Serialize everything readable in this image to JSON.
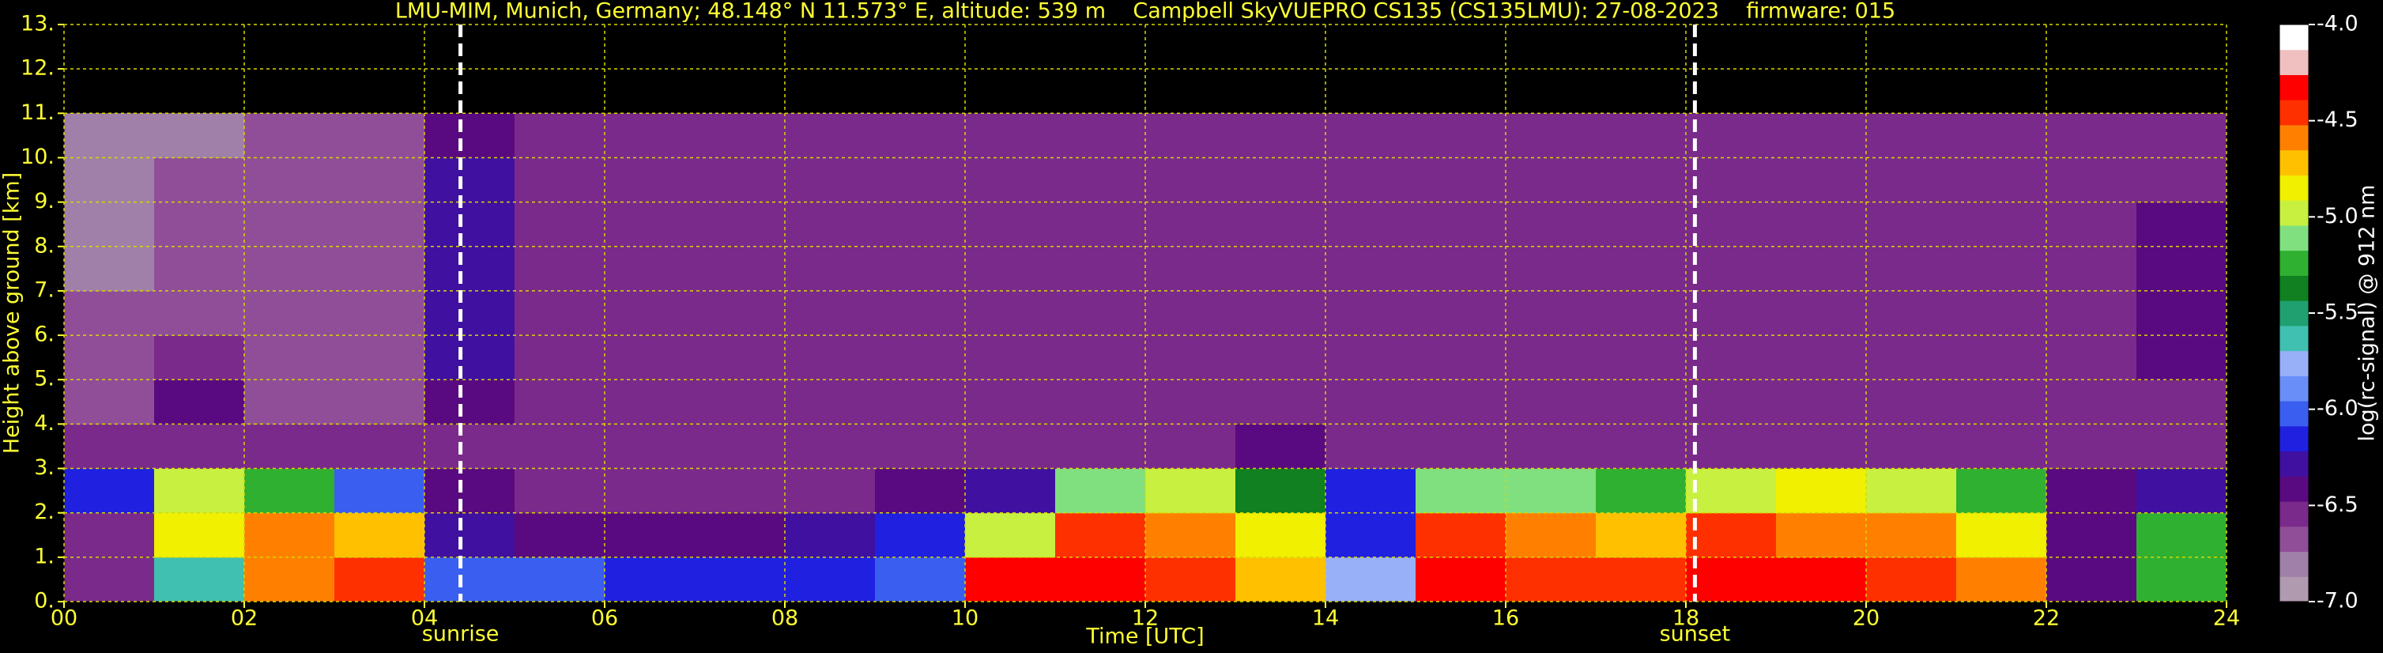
{
  "chart_data": {
    "type": "heatmap",
    "title": "LMU-MIM, Munich, Germany; 48.148° N 11.573° E, altitude: 539 m    Campbell SkyVUEPRO CS135 (CS135LMU): 27-08-2023    firmware: 015",
    "x_label": "Time [UTC]",
    "y_label": "Height above ground [km]",
    "colorbar_label": "log(rc-signal) @ 912 nm",
    "xlim": [
      0,
      24
    ],
    "ylim": [
      0,
      13
    ],
    "xticks": [
      {
        "value": 0,
        "label": "00"
      },
      {
        "value": 2,
        "label": "02"
      },
      {
        "value": 4,
        "label": "04"
      },
      {
        "value": 6,
        "label": "06"
      },
      {
        "value": 8,
        "label": "08"
      },
      {
        "value": 10,
        "label": "10"
      },
      {
        "value": 12,
        "label": "12"
      },
      {
        "value": 14,
        "label": "14"
      },
      {
        "value": 16,
        "label": "16"
      },
      {
        "value": 18,
        "label": "18"
      },
      {
        "value": 20,
        "label": "20"
      },
      {
        "value": 22,
        "label": "22"
      },
      {
        "value": 24,
        "label": "24"
      }
    ],
    "yticks": [
      {
        "value": 0,
        "label": "0."
      },
      {
        "value": 1,
        "label": "1."
      },
      {
        "value": 2,
        "label": "2."
      },
      {
        "value": 3,
        "label": "3."
      },
      {
        "value": 4,
        "label": "4."
      },
      {
        "value": 5,
        "label": "5."
      },
      {
        "value": 6,
        "label": "6."
      },
      {
        "value": 7,
        "label": "7."
      },
      {
        "value": 8,
        "label": "8."
      },
      {
        "value": 9,
        "label": "9."
      },
      {
        "value": 10,
        "label": "10."
      },
      {
        "value": 11,
        "label": "11."
      },
      {
        "value": 12,
        "label": "12."
      },
      {
        "value": 13,
        "label": "13."
      }
    ],
    "zlim": [
      -7.0,
      -4.0
    ],
    "zticks": [
      {
        "value": -4,
        "label": "-4.0"
      },
      {
        "value": -4.5,
        "label": "-4.5"
      },
      {
        "value": -5,
        "label": "-5.0"
      },
      {
        "value": -5.5,
        "label": "-5.5"
      },
      {
        "value": -6,
        "label": "-6.0"
      },
      {
        "value": -6.5,
        "label": "-6.5"
      },
      {
        "value": -7,
        "label": "-7.0"
      }
    ],
    "colorscale": [
      "#b09ab0",
      "#a080a8",
      "#904e98",
      "#7a2a8a",
      "#5a0a80",
      "#4010a0",
      "#2020e0",
      "#3a5ef0",
      "#6a8ef8",
      "#98b0f8",
      "#40c0b0",
      "#20a070",
      "#108020",
      "#30b030",
      "#80e080",
      "#c8f040",
      "#f0f000",
      "#ffc000",
      "#ff8000",
      "#ff3000",
      "#ff0000",
      "#f0c0c0",
      "#ffffff"
    ],
    "grid": true,
    "grid_color": "#d8d800",
    "text_color": "#ffff33",
    "x_bins": [
      0,
      1,
      2,
      3,
      4,
      5,
      6,
      7,
      8,
      9,
      10,
      11,
      12,
      13,
      14,
      15,
      16,
      17,
      18,
      19,
      20,
      21,
      22,
      23,
      24
    ],
    "y_bins": [
      0,
      1,
      2,
      3,
      4,
      5,
      6,
      7,
      8,
      9,
      10,
      11,
      12,
      13
    ],
    "z": [
      [
        -6.6,
        -5.6,
        -4.6,
        -4.5,
        -6.0,
        -6.0,
        -6.2,
        -6.2,
        -6.2,
        -6.0,
        -4.3,
        -4.3,
        -4.5,
        -4.7,
        -5.8,
        -4.3,
        -4.4,
        -4.5,
        -4.3,
        -4.3,
        -4.4,
        -4.6,
        -6.4,
        -5.2
      ],
      [
        -6.5,
        -4.9,
        -4.6,
        -4.7,
        -6.3,
        -6.4,
        -6.4,
        -6.4,
        -6.3,
        -6.2,
        -5.0,
        -4.5,
        -4.6,
        -4.9,
        -6.2,
        -4.5,
        -4.6,
        -4.7,
        -4.5,
        -4.6,
        -4.6,
        -4.8,
        -6.4,
        -5.3
      ],
      [
        -6.2,
        -5.0,
        -5.2,
        -6.0,
        -6.4,
        -6.5,
        -6.5,
        -6.5,
        -6.5,
        -6.4,
        -6.3,
        -5.1,
        -5.0,
        -5.4,
        -6.2,
        -5.1,
        -5.1,
        -5.2,
        -5.0,
        -4.9,
        -5.0,
        -5.2,
        -6.4,
        -6.3
      ],
      [
        -6.6,
        -6.5,
        -6.6,
        -6.6,
        -6.5,
        -6.5,
        -6.6,
        -6.6,
        -6.6,
        -6.6,
        -6.5,
        -6.5,
        -6.5,
        -6.4,
        -6.5,
        -6.6,
        -6.6,
        -6.6,
        -6.6,
        -6.6,
        -6.6,
        -6.6,
        -6.6,
        -6.6
      ],
      [
        -6.7,
        -6.4,
        -6.7,
        -6.7,
        -6.4,
        -6.6,
        -6.6,
        -6.6,
        -6.6,
        -6.6,
        -6.6,
        -6.6,
        -6.6,
        -6.6,
        -6.6,
        -6.6,
        -6.6,
        -6.6,
        -6.6,
        -6.6,
        -6.6,
        -6.6,
        -6.6,
        -6.5
      ],
      [
        -6.7,
        -6.6,
        -6.7,
        -6.7,
        -6.3,
        -6.6,
        -6.6,
        -6.6,
        -6.5,
        -6.6,
        -6.6,
        -6.6,
        -6.6,
        -6.6,
        -6.6,
        -6.6,
        -6.6,
        -6.6,
        -6.6,
        -6.6,
        -6.6,
        -6.6,
        -6.5,
        -6.4
      ],
      [
        -6.7,
        -6.7,
        -6.7,
        -6.7,
        -6.3,
        -6.6,
        -6.5,
        -6.6,
        -6.5,
        -6.6,
        -6.6,
        -6.6,
        -6.6,
        -6.6,
        -6.6,
        -6.6,
        -6.6,
        -6.6,
        -6.6,
        -6.6,
        -6.6,
        -6.6,
        -6.5,
        -6.4
      ],
      [
        -6.8,
        -6.7,
        -6.7,
        -6.7,
        -6.3,
        -6.6,
        -6.5,
        -6.5,
        -6.5,
        -6.6,
        -6.6,
        -6.6,
        -6.6,
        -6.6,
        -6.6,
        -6.6,
        -6.6,
        -6.6,
        -6.6,
        -6.6,
        -6.6,
        -6.6,
        -6.5,
        -6.4
      ],
      [
        -6.8,
        -6.7,
        -6.7,
        -6.7,
        -6.3,
        -6.6,
        -6.5,
        -6.5,
        -6.6,
        -6.6,
        -6.6,
        -6.6,
        -6.6,
        -6.6,
        -6.6,
        -6.6,
        -6.6,
        -6.6,
        -6.6,
        -6.6,
        -6.6,
        -6.6,
        -6.5,
        -6.4
      ],
      [
        -6.8,
        -6.7,
        -6.7,
        -6.7,
        -6.3,
        -6.5,
        -6.5,
        -6.5,
        -6.6,
        -6.6,
        -6.6,
        -6.6,
        -6.6,
        -6.6,
        -6.6,
        -6.6,
        -6.6,
        -6.6,
        -6.6,
        -6.6,
        -6.6,
        -6.6,
        -6.6,
        -6.5
      ],
      [
        -6.8,
        -6.8,
        -6.7,
        -6.7,
        -6.4,
        -6.6,
        -6.6,
        -6.6,
        -6.6,
        -6.6,
        -6.6,
        -6.6,
        -6.6,
        -6.6,
        -6.6,
        -6.6,
        -6.6,
        -6.6,
        -6.6,
        -6.6,
        -6.6,
        -6.6,
        -6.6,
        -6.6
      ],
      [
        null,
        null,
        null,
        null,
        null,
        null,
        null,
        null,
        null,
        null,
        null,
        null,
        null,
        null,
        null,
        null,
        null,
        null,
        null,
        null,
        null,
        null,
        null,
        null
      ],
      [
        null,
        null,
        null,
        null,
        null,
        null,
        null,
        null,
        null,
        null,
        null,
        null,
        null,
        null,
        null,
        null,
        null,
        null,
        null,
        null,
        null,
        null,
        null,
        null
      ]
    ],
    "annotations": [
      {
        "text": "sunrise",
        "x": 4.4
      },
      {
        "text": "sunset",
        "x": 18.1
      }
    ],
    "annotation_line_color": "#ffffff"
  }
}
